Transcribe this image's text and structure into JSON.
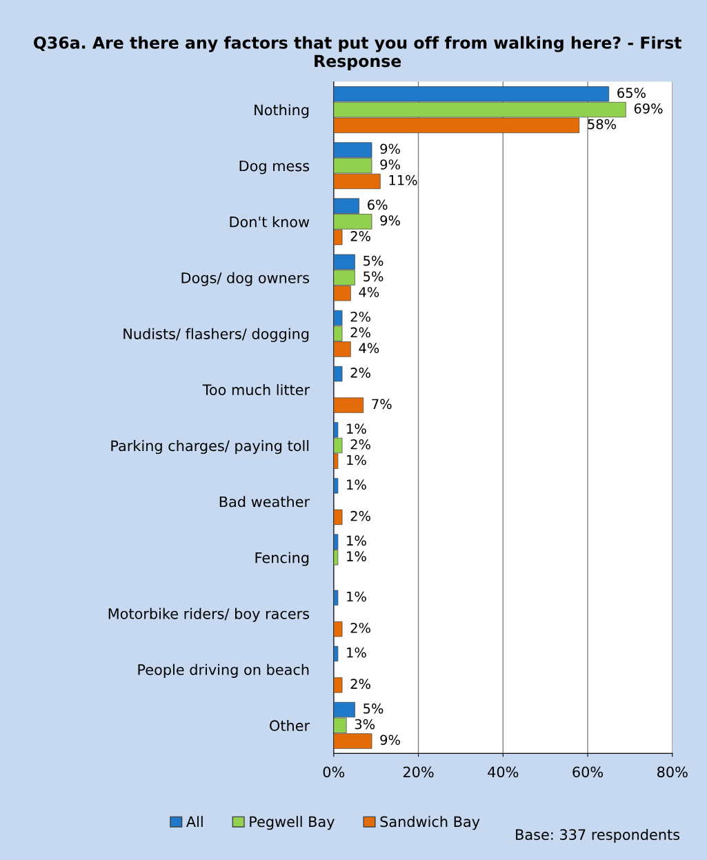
{
  "chart_data": {
    "type": "bar",
    "orientation": "horizontal",
    "title": "Q36a. Are there any factors that put you off from walking here? - First Response",
    "categories": [
      "Nothing",
      "Dog mess",
      "Don't know",
      "Dogs/ dog owners",
      "Nudists/ flashers/ dogging",
      "Too much litter",
      "Parking charges/ paying toll",
      "Bad weather",
      "Fencing",
      "Motorbike riders/ boy racers",
      "People driving on beach",
      "Other"
    ],
    "series": [
      {
        "name": "All",
        "color": "#1f78c8",
        "values": [
          65,
          9,
          6,
          5,
          2,
          2,
          1,
          1,
          1,
          1,
          1,
          5
        ],
        "value_labels": [
          "65%",
          "9%",
          "6%",
          "5%",
          "2%",
          "2%",
          "1%",
          "1%",
          "1%",
          "1%",
          "1%",
          "5%"
        ]
      },
      {
        "name": "Pegwell Bay",
        "color": "#92d050",
        "values": [
          69,
          9,
          9,
          5,
          2,
          null,
          2,
          null,
          1,
          null,
          null,
          3
        ],
        "value_labels": [
          "69%",
          "9%",
          "9%",
          "5%",
          "2%",
          null,
          "2%",
          null,
          "1%",
          null,
          null,
          "3%"
        ]
      },
      {
        "name": "Sandwich Bay",
        "color": "#e36c09",
        "values": [
          58,
          11,
          2,
          4,
          4,
          7,
          1,
          2,
          null,
          2,
          2,
          9
        ],
        "value_labels": [
          "58%",
          "11%",
          "2%",
          "4%",
          "4%",
          "7%",
          "1%",
          "2%",
          null,
          "2%",
          "2%",
          "9%"
        ]
      }
    ],
    "xlim": [
      0,
      80
    ],
    "xticks": [
      {
        "value": 0,
        "label": "0%"
      },
      {
        "value": 20,
        "label": "20%"
      },
      {
        "value": 40,
        "label": "40%"
      },
      {
        "value": 60,
        "label": "60%"
      },
      {
        "value": 80,
        "label": "80%"
      }
    ],
    "grid": "x",
    "legend": "bottom",
    "annotations": [
      "Base: 337 respondents"
    ]
  }
}
